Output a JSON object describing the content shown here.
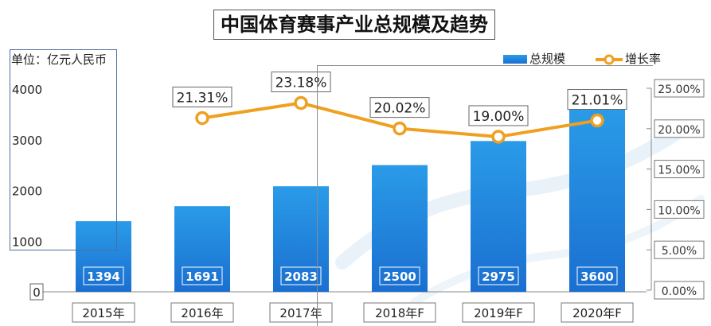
{
  "title": "中国体育赛事产业总规模及趋势",
  "unit_label": "单位：亿元人民币",
  "legend": {
    "bar": "总规模",
    "line": "增长率"
  },
  "colors": {
    "bar_top": "#2a9be8",
    "bar_bottom": "#1a6fd0",
    "line": "#f0a020",
    "axis": "#888888",
    "watermark": "#dbe9f5"
  },
  "chart_data": {
    "type": "bar",
    "categories": [
      "2015年",
      "2016年",
      "2017年",
      "2018年F",
      "2019年F",
      "2020年F"
    ],
    "series": [
      {
        "name": "总规模",
        "type": "bar",
        "values": [
          1394,
          1691,
          2083,
          2500,
          2975,
          3600
        ]
      },
      {
        "name": "增长率",
        "type": "line",
        "values": [
          null,
          21.31,
          23.18,
          20.02,
          19.0,
          21.01
        ],
        "labels": [
          "",
          "21.31%",
          "23.18%",
          "20.02%",
          "19.00%",
          "21.01%"
        ]
      }
    ],
    "bar_labels": [
      "1394",
      "1691",
      "2083",
      "2500",
      "2975",
      "3600"
    ],
    "y_left": {
      "min": 0,
      "max": 4000,
      "ticks": [
        "0",
        "1000",
        "2000",
        "3000",
        "4000"
      ]
    },
    "y_right": {
      "min": 0,
      "max": 25,
      "ticks": [
        "0.00%",
        "5.00%",
        "10.00%",
        "15.00%",
        "20.00%",
        "25.00%"
      ]
    },
    "legend_position": "top-right",
    "grid": false
  }
}
